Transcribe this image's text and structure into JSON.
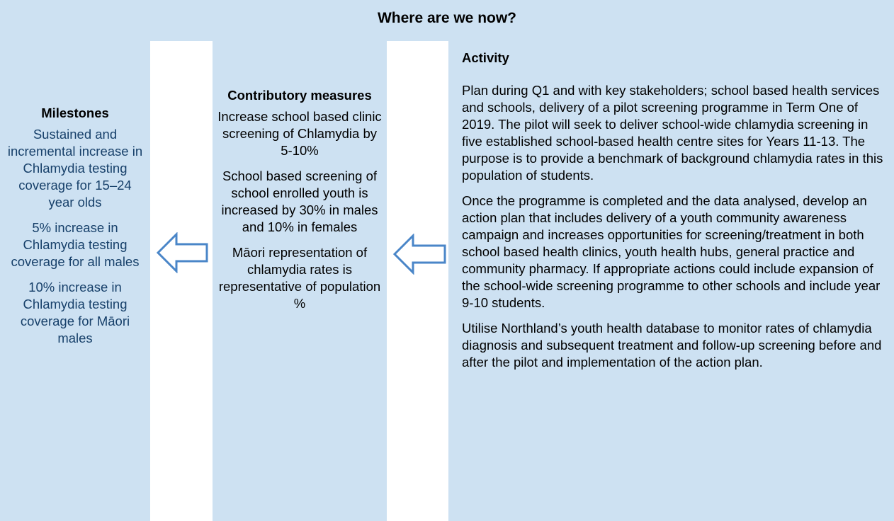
{
  "title": "Where are we now?",
  "milestones": {
    "heading": "Milestones",
    "items": [
      "Sustained and incremental increase in Chlamydia testing coverage for 15–24 year olds",
      "5% increase in Chlamydia testing coverage for all males",
      "10% increase in Chlamydia testing coverage for Māori males"
    ]
  },
  "contributory": {
    "heading": "Contributory measures",
    "items": [
      "Increase school based clinic screening of Chlamydia by 5-10%",
      "School based screening of school enrolled youth is increased by 30% in males and 10% in females",
      "Māori representation of chlamydia rates is representative of population %"
    ]
  },
  "activity": {
    "heading": "Activity",
    "paragraphs": [
      "Plan during Q1 and with key stakeholders; school based health services and schools, delivery of a pilot screening programme in Term One of 2019. The pilot will seek to deliver school-wide chlamydia screening in five established school-based health centre sites for Years 11-13. The purpose is to provide a benchmark of background chlamydia rates in this population of students.",
      "Once the programme is completed and the data analysed, develop an action plan that includes delivery of a youth community awareness campaign and increases opportunities for screening/treatment in both school based health clinics, youth health hubs, general practice and community pharmacy. If appropriate actions could include expansion of the school-wide screening programme to other schools and include year 9-10 students.",
      "Utilise Northland’s youth health database to monitor rates of chlamydia diagnosis and subsequent treatment and follow-up screening before and after the pilot and implementation of the action plan."
    ]
  }
}
